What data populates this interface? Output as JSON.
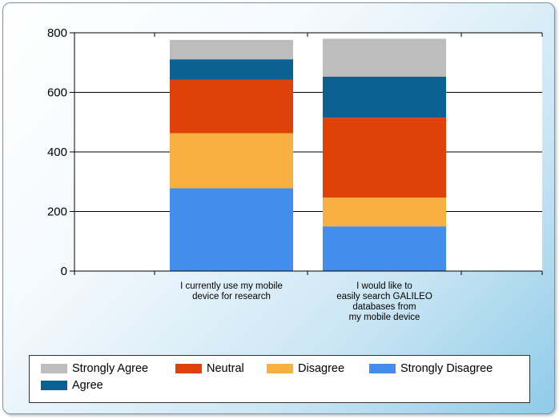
{
  "chart_data": {
    "type": "bar",
    "stacked": true,
    "categories": [
      [
        "I currently use my mobile",
        "device for research"
      ],
      [
        "I would like to",
        "easily search GALILEO",
        "databases from",
        "my mobile device"
      ]
    ],
    "series": [
      {
        "name": "Strongly Disagree",
        "color": "#438ded",
        "values": [
          278,
          150
        ]
      },
      {
        "name": "Disagree",
        "color": "#f8b041",
        "values": [
          185,
          97
        ]
      },
      {
        "name": "Neutral",
        "color": "#df4209",
        "values": [
          180,
          268
        ]
      },
      {
        "name": "Agree",
        "color": "#0b6192",
        "values": [
          68,
          138
        ]
      },
      {
        "name": "Strongly Agree",
        "color": "#bdbdbd",
        "values": [
          65,
          127
        ]
      }
    ],
    "ylim": [
      0,
      800
    ],
    "yticks": [
      0,
      200,
      400,
      600,
      800
    ],
    "grid": "horizontal",
    "legend_position": "bottom"
  },
  "legend": [
    {
      "label": "Strongly Agree",
      "color": "#bdbdbd"
    },
    {
      "label": "Neutral",
      "color": "#df4209"
    },
    {
      "label": "Disagree",
      "color": "#f8b041"
    },
    {
      "label": "Strongly Disagree",
      "color": "#438ded"
    },
    {
      "label": "Agree",
      "color": "#0b6192"
    }
  ]
}
